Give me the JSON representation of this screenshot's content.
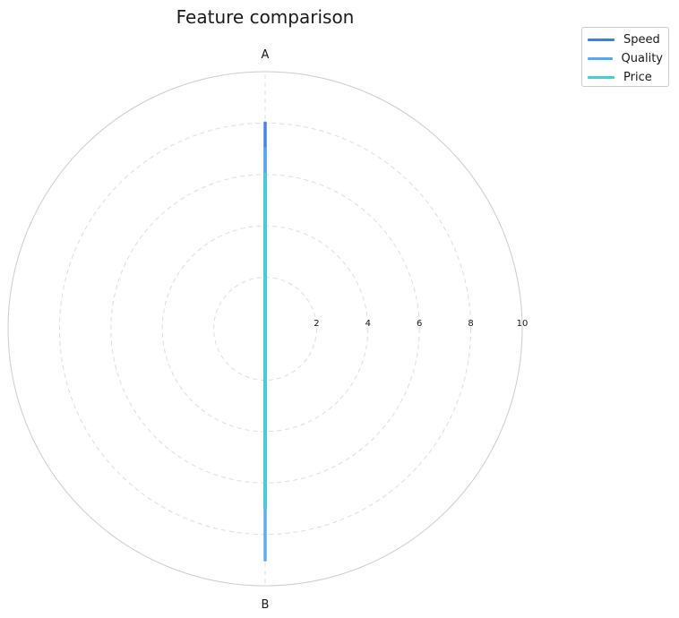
{
  "chart_data": {
    "type": "radar",
    "title": "Feature comparison",
    "axes": [
      "A",
      "B"
    ],
    "rlim": [
      0,
      10
    ],
    "rticks": [
      2,
      4,
      6,
      8,
      10
    ],
    "grid": true,
    "legend_placement": "top-right",
    "series": [
      {
        "name": "Speed",
        "values": [
          8,
          7
        ],
        "color": "#3b7de9"
      },
      {
        "name": "Quality",
        "values": [
          7,
          9
        ],
        "color": "#56a8f5"
      },
      {
        "name": "Price",
        "values": [
          6,
          7
        ],
        "color": "#3ed0d6"
      }
    ]
  }
}
